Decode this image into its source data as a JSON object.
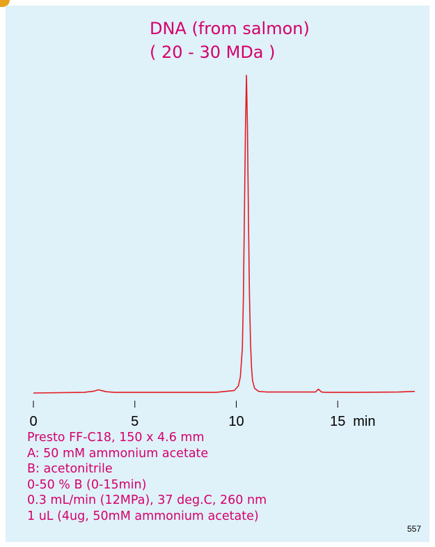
{
  "chart_data": {
    "type": "line",
    "title": [
      "DNA (from salmon)",
      "( 20 - 30 MDa )"
    ],
    "x_unit": "min",
    "xlim": [
      0,
      18.8
    ],
    "ylim": [
      0,
      1.0
    ],
    "xticks": [
      0,
      5,
      10,
      15
    ],
    "grid": false,
    "colors": {
      "trace": "#e31b23",
      "text": "#d4006b",
      "background": "#dff1f9"
    },
    "series": [
      {
        "x": [
          0,
          2.5,
          3.0,
          3.2,
          3.4,
          3.6,
          4.0,
          6.0,
          9.0,
          9.9,
          10.1,
          10.2,
          10.3,
          10.35,
          10.4,
          10.45,
          10.5,
          10.55,
          10.6,
          10.65,
          10.7,
          10.75,
          10.8,
          10.9,
          11.1,
          11.5,
          13.9,
          14.05,
          14.2,
          14.4,
          16.0,
          18.0,
          18.8
        ],
        "y": [
          0.0,
          0.002,
          0.006,
          0.01,
          0.007,
          0.004,
          0.002,
          0.002,
          0.002,
          0.008,
          0.022,
          0.05,
          0.14,
          0.3,
          0.55,
          0.82,
          1.0,
          0.84,
          0.55,
          0.31,
          0.16,
          0.08,
          0.04,
          0.015,
          0.005,
          0.003,
          0.003,
          0.012,
          0.003,
          0.002,
          0.002,
          0.003,
          0.005
        ]
      }
    ]
  },
  "conditions": [
    "Presto FF-C18, 150 x 4.6 mm",
    "A: 50 mM ammonium acetate",
    "B: acetonitrile",
    "0-50 % B (0-15min)",
    "0.3 mL/min (12MPa), 37 deg.C, 260 nm",
    "1 uL (4ug, 50mM ammonium acetate)"
  ],
  "page_number": "557"
}
